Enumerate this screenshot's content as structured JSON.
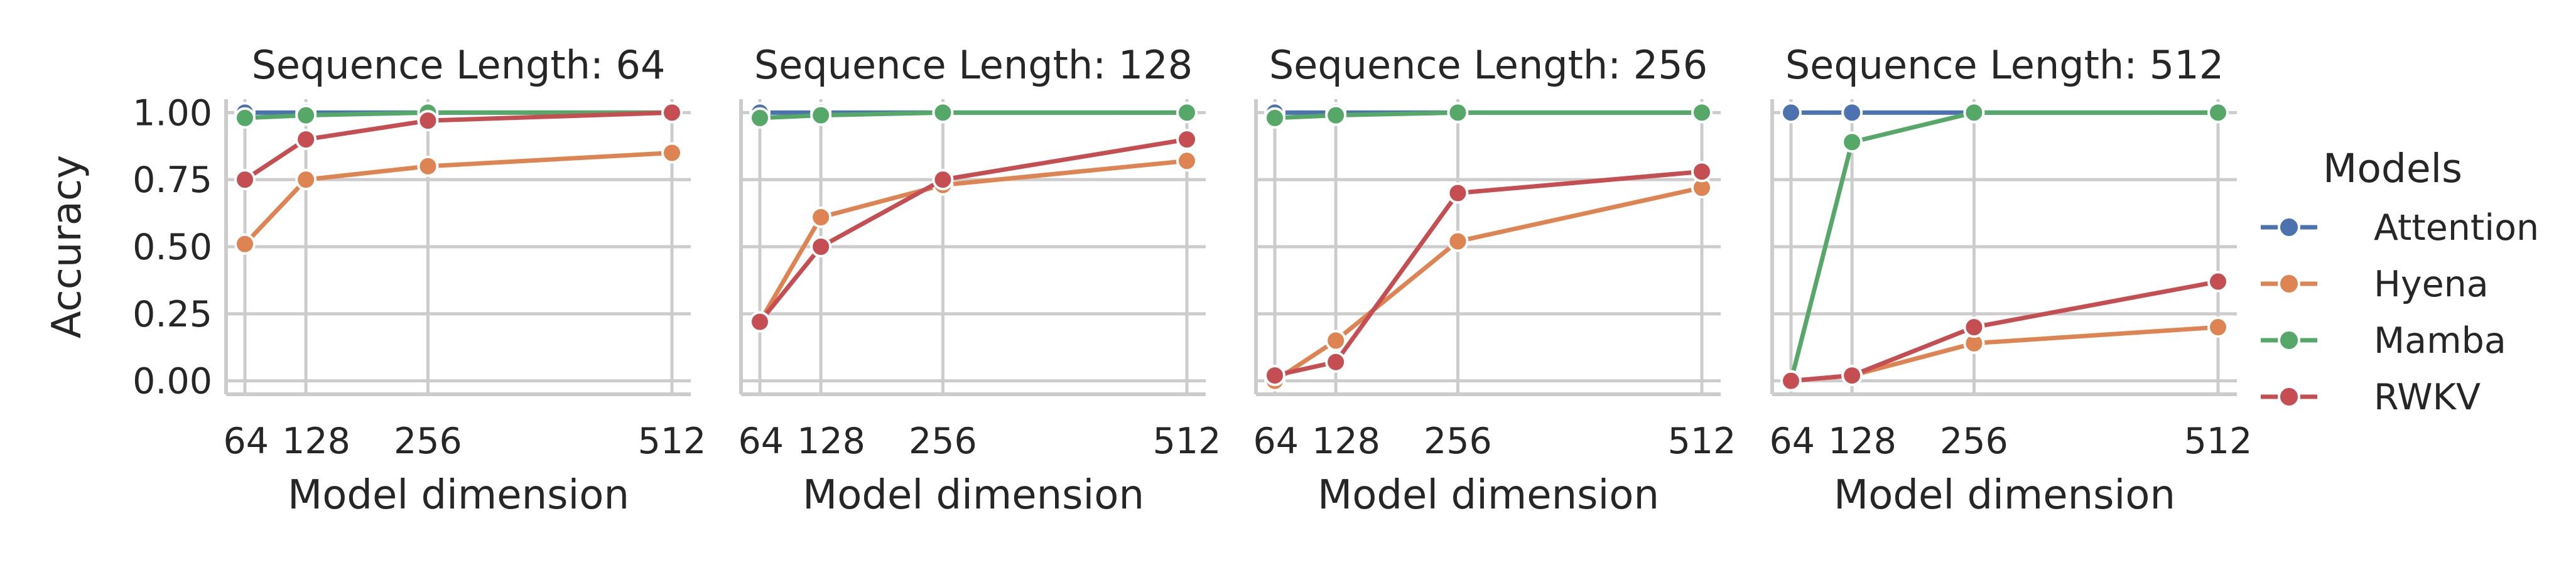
{
  "chart_data": {
    "type": "line",
    "ylabel": "Accuracy",
    "xlabel": "Model dimension",
    "x": [
      64,
      128,
      256,
      512
    ],
    "xticks": [
      "64",
      "128",
      "256",
      "512"
    ],
    "yticks": [
      "0.00",
      "0.25",
      "0.50",
      "0.75",
      "1.00"
    ],
    "ylim": [
      -0.05,
      1.05
    ],
    "grid": true,
    "legend": {
      "title": "Models",
      "placement": "right",
      "entries": [
        "Attention",
        "Hyena",
        "Mamba",
        "RWKV"
      ]
    },
    "colors": {
      "Attention": "#4c72b0",
      "Hyena": "#dd8452",
      "Mamba": "#55a868",
      "RWKV": "#c44e52"
    },
    "panels": [
      {
        "title": "Sequence Length: 64",
        "series": [
          {
            "name": "Attention",
            "values": [
              1.0,
              1.0,
              1.0,
              1.0
            ]
          },
          {
            "name": "Hyena",
            "values": [
              0.51,
              0.75,
              0.8,
              0.85
            ]
          },
          {
            "name": "Mamba",
            "values": [
              0.98,
              0.99,
              1.0,
              1.0
            ]
          },
          {
            "name": "RWKV",
            "values": [
              0.75,
              0.9,
              0.97,
              1.0
            ]
          }
        ]
      },
      {
        "title": "Sequence Length: 128",
        "series": [
          {
            "name": "Attention",
            "values": [
              1.0,
              1.0,
              1.0,
              1.0
            ]
          },
          {
            "name": "Hyena",
            "values": [
              0.22,
              0.61,
              0.73,
              0.82
            ]
          },
          {
            "name": "Mamba",
            "values": [
              0.98,
              0.99,
              1.0,
              1.0
            ]
          },
          {
            "name": "RWKV",
            "values": [
              0.22,
              0.5,
              0.75,
              0.9
            ]
          }
        ]
      },
      {
        "title": "Sequence Length: 256",
        "series": [
          {
            "name": "Attention",
            "values": [
              1.0,
              1.0,
              1.0,
              1.0
            ]
          },
          {
            "name": "Hyena",
            "values": [
              0.0,
              0.15,
              0.52,
              0.72
            ]
          },
          {
            "name": "Mamba",
            "values": [
              0.98,
              0.99,
              1.0,
              1.0
            ]
          },
          {
            "name": "RWKV",
            "values": [
              0.02,
              0.07,
              0.7,
              0.78
            ]
          }
        ]
      },
      {
        "title": "Sequence Length: 512",
        "series": [
          {
            "name": "Attention",
            "values": [
              1.0,
              1.0,
              1.0,
              1.0
            ]
          },
          {
            "name": "Hyena",
            "values": [
              0.0,
              0.02,
              0.14,
              0.2
            ]
          },
          {
            "name": "Mamba",
            "values": [
              0.0,
              0.89,
              1.0,
              1.0
            ]
          },
          {
            "name": "RWKV",
            "values": [
              0.0,
              0.02,
              0.2,
              0.37
            ]
          }
        ]
      }
    ]
  }
}
